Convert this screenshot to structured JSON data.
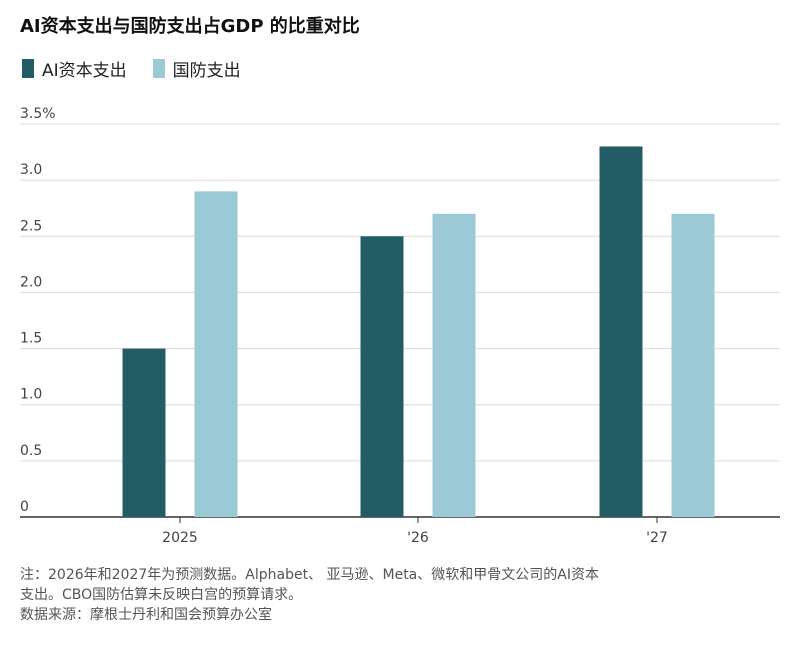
{
  "title": "AI资本支出与国防支出占GDP 的比重对比",
  "legend": [
    {
      "label": "AI资本支出",
      "color": "#245c66"
    },
    {
      "label": "国防支出",
      "color": "#9bc9d6"
    }
  ],
  "chart_data": {
    "type": "bar",
    "categories": [
      "2025",
      "'26",
      "'27"
    ],
    "series": [
      {
        "name": "AI资本支出",
        "color": "#245c66",
        "values": [
          1.5,
          2.5,
          3.3
        ]
      },
      {
        "name": "国防支出",
        "color": "#9bc9d6",
        "values": [
          2.9,
          2.7,
          2.7
        ]
      }
    ],
    "ylim": [
      0,
      3.5
    ],
    "yticks": [
      {
        "value": 0,
        "label": "0"
      },
      {
        "value": 0.5,
        "label": "0.5"
      },
      {
        "value": 1.0,
        "label": "1.0"
      },
      {
        "value": 1.5,
        "label": "1.5"
      },
      {
        "value": 2.0,
        "label": "2.0"
      },
      {
        "value": 2.5,
        "label": "2.5"
      },
      {
        "value": 3.0,
        "label": "3.0"
      },
      {
        "value": 3.5,
        "label": "3.5%"
      }
    ],
    "grid": true
  },
  "notes": {
    "note_line1": "注：2026年和2027年为预测数据。Alphabet、 亚马逊、Meta、微软和甲骨文公司的AI资本",
    "note_line2": "支出。CBO国防估算未反映白宫的预算请求。",
    "source": "数据来源：摩根士丹利和国会预算办公室"
  }
}
